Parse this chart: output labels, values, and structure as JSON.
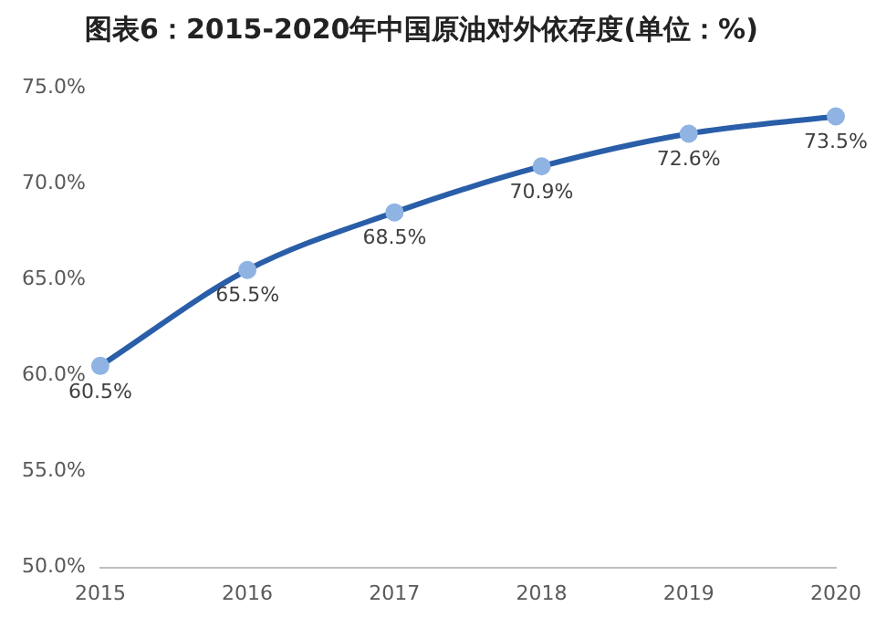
{
  "chart_data": {
    "type": "line",
    "title": "图表6：2015-2020年中国原油对外依存度(单位：%)",
    "categories": [
      "2015",
      "2016",
      "2017",
      "2018",
      "2019",
      "2020"
    ],
    "series": [
      {
        "color": "#2a5ea8",
        "values": [
          60.5,
          65.5,
          68.5,
          70.9,
          72.6,
          73.5
        ],
        "value_labels": [
          "60.5%",
          "65.5%",
          "68.5%",
          "70.9%",
          "72.6%",
          "73.5%"
        ]
      }
    ],
    "ylim": [
      50,
      75
    ],
    "yticks": [
      {
        "value": 50,
        "label": "50.0%"
      },
      {
        "value": 55,
        "label": "55.0%"
      },
      {
        "value": 60,
        "label": "60.0%"
      },
      {
        "value": 65,
        "label": "65.0%"
      },
      {
        "value": 70,
        "label": "70.0%"
      },
      {
        "value": 75,
        "label": "75.0%"
      }
    ],
    "grid": false,
    "legend": false,
    "marker": "circle",
    "line_style": "solid"
  }
}
